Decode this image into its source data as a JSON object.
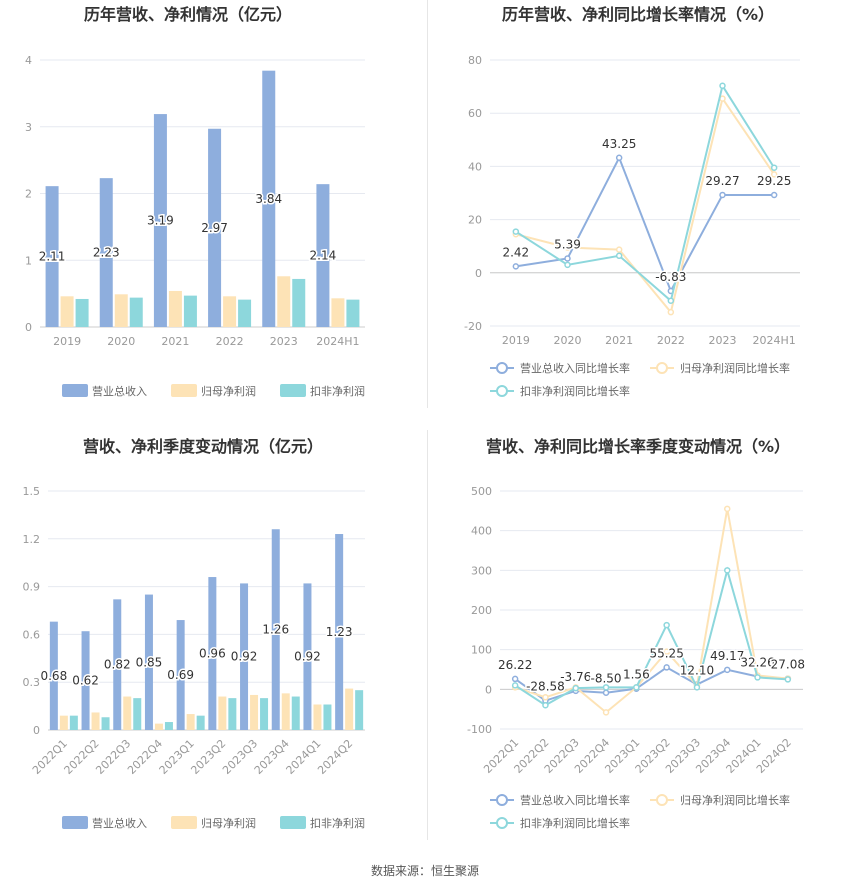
{
  "source_text": "数据来源：恒生聚源",
  "colors": {
    "revenue_bar": "#8eaedd",
    "parent_bar": "#fde3b6",
    "deducted_bar": "#8dd7dc",
    "revenue_line": "#8eaedd",
    "parent_line": "#fde3b6",
    "deducted_line": "#8dd7dc",
    "grid": "#e6e9f0",
    "axis_text": "#999999",
    "title": "#333333"
  },
  "chart_data": [
    {
      "type": "bar",
      "title": "历年营收、净利情况（亿元）",
      "categories": [
        "2019",
        "2020",
        "2021",
        "2022",
        "2023",
        "2024H1"
      ],
      "series": [
        {
          "name": "营业总收入",
          "values": [
            2.11,
            2.23,
            3.19,
            2.97,
            3.84,
            2.14
          ],
          "labels": [
            "2.11",
            "2.23",
            "3.19",
            "2.97",
            "3.84",
            "2.14"
          ]
        },
        {
          "name": "归母净利润",
          "values": [
            0.46,
            0.49,
            0.54,
            0.46,
            0.76,
            0.43
          ]
        },
        {
          "name": "扣非净利润",
          "values": [
            0.42,
            0.44,
            0.47,
            0.41,
            0.72,
            0.41
          ]
        }
      ],
      "yticks": [
        "0",
        "1",
        "2",
        "3",
        "4"
      ],
      "ylim": [
        0,
        4
      ],
      "legend": "bottom"
    },
    {
      "type": "line",
      "title": "历年营收、净利同比增长率情况（%）",
      "categories": [
        "2019",
        "2020",
        "2021",
        "2022",
        "2023",
        "2024H1"
      ],
      "series": [
        {
          "name": "营业总收入同比增长率",
          "values": [
            2.42,
            5.39,
            43.25,
            -6.83,
            29.27,
            29.25
          ],
          "labels": [
            "2.42",
            "5.39",
            "43.25",
            "-6.83",
            "29.27",
            "29.25"
          ]
        },
        {
          "name": "归母净利润同比增长率",
          "values": [
            14.5,
            9.5,
            8.7,
            -14.8,
            65.5,
            37.0
          ]
        },
        {
          "name": "扣非净利润同比增长率",
          "values": [
            15.5,
            3.0,
            6.4,
            -10.5,
            70.3,
            39.5
          ]
        }
      ],
      "yticks": [
        "-20",
        "0",
        "20",
        "40",
        "60",
        "80"
      ],
      "ylim": [
        -20,
        80
      ],
      "legend": "bottom"
    },
    {
      "type": "bar",
      "title": "营收、净利季度变动情况（亿元）",
      "categories": [
        "2022Q1",
        "2022Q2",
        "2022Q3",
        "2022Q4",
        "2023Q1",
        "2023Q2",
        "2023Q3",
        "2023Q4",
        "2024Q1",
        "2024Q2"
      ],
      "series": [
        {
          "name": "营业总收入",
          "values": [
            0.68,
            0.62,
            0.82,
            0.85,
            0.69,
            0.96,
            0.92,
            1.26,
            0.92,
            1.23
          ],
          "labels": [
            "0.68",
            "0.62",
            "0.82",
            "0.85",
            "0.69",
            "0.96",
            "0.92",
            "1.26",
            "0.92",
            "1.23"
          ]
        },
        {
          "name": "归母净利润",
          "values": [
            0.09,
            0.11,
            0.21,
            0.04,
            0.1,
            0.21,
            0.22,
            0.23,
            0.16,
            0.26
          ]
        },
        {
          "name": "扣非净利润",
          "values": [
            0.09,
            0.08,
            0.2,
            0.05,
            0.09,
            0.2,
            0.2,
            0.21,
            0.16,
            0.25
          ]
        }
      ],
      "yticks": [
        "0",
        "0.3",
        "0.6",
        "0.9",
        "1.2",
        "1.5"
      ],
      "ylim": [
        0,
        1.5
      ],
      "legend": "bottom"
    },
    {
      "type": "line",
      "title": "营收、净利同比增长率季度变动情况（%）",
      "categories": [
        "2022Q1",
        "2022Q2",
        "2022Q3",
        "2022Q4",
        "2023Q1",
        "2023Q2",
        "2023Q3",
        "2023Q4",
        "2024Q1",
        "2024Q2"
      ],
      "series": [
        {
          "name": "营业总收入同比增长率",
          "values": [
            26.22,
            -28.58,
            -3.76,
            -8.5,
            1.56,
            55.25,
            12.1,
            49.17,
            32.26,
            27.08
          ],
          "labels": [
            "26.22",
            "-28.58",
            "-3.76",
            "-8.50",
            "1.56",
            "55.25",
            "12.10",
            "49.17",
            "32.26",
            "27.08"
          ]
        },
        {
          "name": "归母净利润同比增长率",
          "values": [
            5,
            -20,
            5,
            -58,
            5,
            95,
            10,
            455,
            35,
            27
          ]
        },
        {
          "name": "扣非净利润同比增长率",
          "values": [
            10,
            -40,
            3,
            5,
            5,
            162,
            5,
            300,
            30,
            25
          ]
        }
      ],
      "yticks": [
        "-100",
        "0",
        "100",
        "200",
        "300",
        "400",
        "500"
      ],
      "ylim": [
        -100,
        500
      ],
      "legend": "bottom"
    }
  ]
}
